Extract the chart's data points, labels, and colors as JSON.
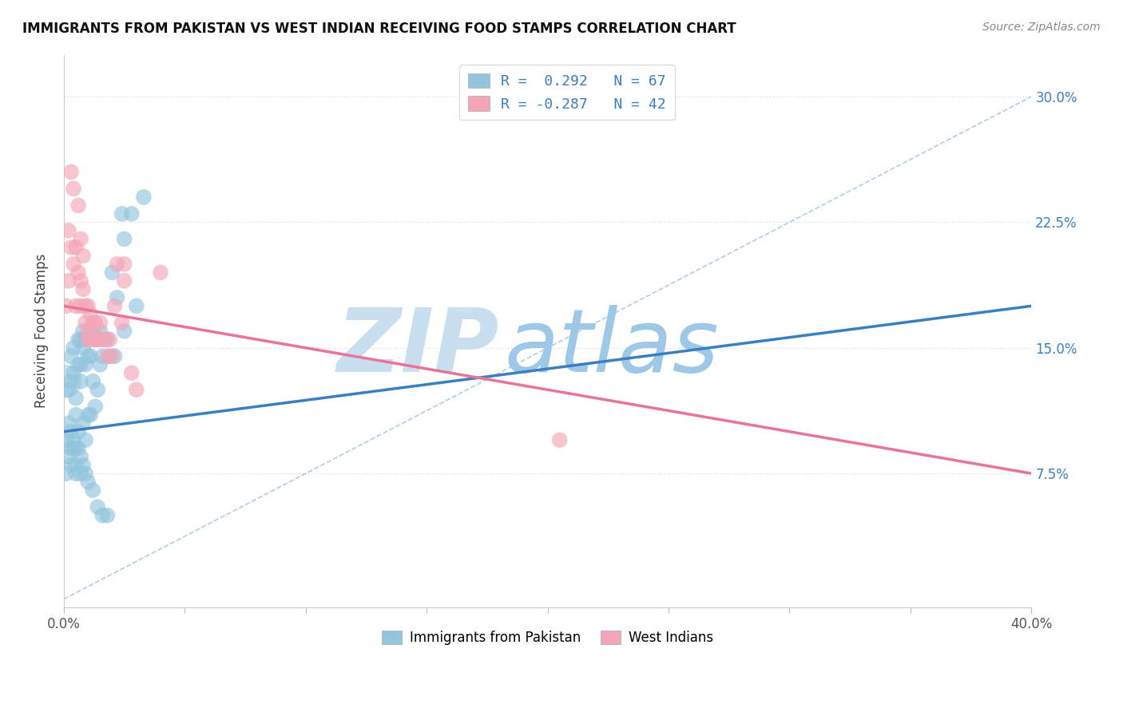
{
  "title": "IMMIGRANTS FROM PAKISTAN VS WEST INDIAN RECEIVING FOOD STAMPS CORRELATION CHART",
  "source_text": "Source: ZipAtlas.com",
  "ylabel": "Receiving Food Stamps",
  "ytick_labels": [
    "7.5%",
    "15.0%",
    "22.5%",
    "30.0%"
  ],
  "ytick_values": [
    0.075,
    0.15,
    0.225,
    0.3
  ],
  "xlim": [
    0.0,
    0.4
  ],
  "ylim": [
    -0.005,
    0.325
  ],
  "legend_line1": "R =  0.292   N = 67",
  "legend_line2": "R = -0.287   N = 42",
  "legend_label_pakistan": "Immigrants from Pakistan",
  "legend_label_westindian": "West Indians",
  "pakistan_color": "#92c5de",
  "westindian_color": "#f4a6b8",
  "pakistan_scatter_x": [
    0.001,
    0.002,
    0.002,
    0.003,
    0.003,
    0.003,
    0.004,
    0.004,
    0.004,
    0.005,
    0.005,
    0.005,
    0.006,
    0.006,
    0.006,
    0.007,
    0.007,
    0.007,
    0.007,
    0.008,
    0.008,
    0.008,
    0.009,
    0.009,
    0.009,
    0.01,
    0.01,
    0.01,
    0.011,
    0.011,
    0.012,
    0.012,
    0.013,
    0.013,
    0.014,
    0.014,
    0.015,
    0.015,
    0.016,
    0.017,
    0.018,
    0.019,
    0.02,
    0.021,
    0.022,
    0.024,
    0.025,
    0.028,
    0.03,
    0.033,
    0.001,
    0.002,
    0.003,
    0.003,
    0.004,
    0.005,
    0.005,
    0.006,
    0.007,
    0.008,
    0.009,
    0.01,
    0.012,
    0.014,
    0.016,
    0.018,
    0.025
  ],
  "pakistan_scatter_y": [
    0.095,
    0.125,
    0.105,
    0.145,
    0.13,
    0.09,
    0.15,
    0.135,
    0.095,
    0.12,
    0.11,
    0.09,
    0.155,
    0.14,
    0.1,
    0.14,
    0.155,
    0.13,
    0.085,
    0.16,
    0.15,
    0.105,
    0.155,
    0.14,
    0.095,
    0.155,
    0.145,
    0.11,
    0.145,
    0.11,
    0.16,
    0.13,
    0.155,
    0.115,
    0.155,
    0.125,
    0.16,
    0.14,
    0.145,
    0.155,
    0.155,
    0.145,
    0.195,
    0.145,
    0.18,
    0.23,
    0.16,
    0.23,
    0.175,
    0.24,
    0.075,
    0.085,
    0.1,
    0.08,
    0.09,
    0.08,
    0.075,
    0.09,
    0.075,
    0.08,
    0.075,
    0.07,
    0.065,
    0.055,
    0.05,
    0.05,
    0.215
  ],
  "westindian_scatter_x": [
    0.001,
    0.002,
    0.002,
    0.003,
    0.003,
    0.004,
    0.004,
    0.005,
    0.005,
    0.006,
    0.006,
    0.007,
    0.007,
    0.007,
    0.008,
    0.008,
    0.009,
    0.009,
    0.01,
    0.01,
    0.01,
    0.011,
    0.011,
    0.012,
    0.013,
    0.013,
    0.014,
    0.015,
    0.016,
    0.017,
    0.018,
    0.019,
    0.02,
    0.021,
    0.022,
    0.024,
    0.025,
    0.028,
    0.205,
    0.025,
    0.03,
    0.04
  ],
  "westindian_scatter_y": [
    0.175,
    0.22,
    0.19,
    0.255,
    0.21,
    0.245,
    0.2,
    0.21,
    0.175,
    0.235,
    0.195,
    0.215,
    0.19,
    0.175,
    0.185,
    0.205,
    0.165,
    0.175,
    0.16,
    0.155,
    0.175,
    0.17,
    0.155,
    0.165,
    0.165,
    0.155,
    0.155,
    0.165,
    0.155,
    0.155,
    0.145,
    0.155,
    0.145,
    0.175,
    0.2,
    0.165,
    0.19,
    0.135,
    0.095,
    0.2,
    0.125,
    0.195
  ],
  "pakistan_trend_x": [
    0.0,
    0.4
  ],
  "pakistan_trend_y": [
    0.1,
    0.175
  ],
  "westindian_trend_x": [
    0.0,
    0.4
  ],
  "westindian_trend_y": [
    0.175,
    0.075
  ],
  "dashed_line_x": [
    0.0,
    0.4
  ],
  "dashed_line_y": [
    0.0,
    0.3
  ],
  "watermark_zip": "ZIP",
  "watermark_atlas": "atlas",
  "watermark_zip_color": "#c8dff0",
  "watermark_atlas_color": "#9ec8e8",
  "background_color": "#ffffff",
  "grid_color": "#dddddd",
  "trend_pakistan_color": "#3a7fc1",
  "trend_westindian_color": "#e8749a",
  "dashed_color": "#a0c0e0"
}
